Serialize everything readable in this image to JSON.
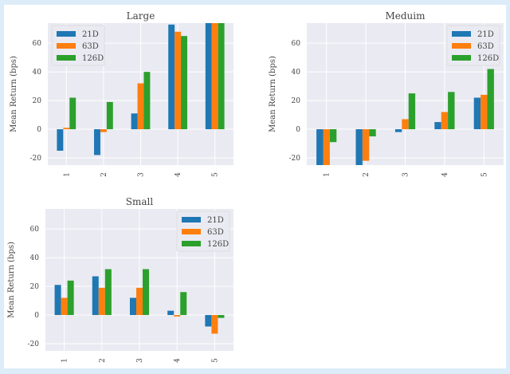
{
  "chart_data": [
    {
      "type": "bar",
      "title": "Large",
      "ylabel": "Mean Return (bps)",
      "categories": [
        "1",
        "2",
        "3",
        "4",
        "5"
      ],
      "ylim": [
        -25,
        74
      ],
      "yticks": [
        -20,
        0,
        20,
        40,
        60
      ],
      "legend": "top-left",
      "grid": true,
      "series": [
        {
          "name": "21D",
          "color": "#1f77b4",
          "values": [
            -15,
            -18,
            11,
            73,
            74
          ]
        },
        {
          "name": "63D",
          "color": "#ff7f0e",
          "values": [
            1,
            -2,
            32,
            68,
            74
          ]
        },
        {
          "name": "126D",
          "color": "#2ca02c",
          "values": [
            22,
            19,
            40,
            65,
            74
          ]
        }
      ]
    },
    {
      "type": "bar",
      "title": "Meduim",
      "ylabel": "Mean Return (bps)",
      "categories": [
        "1",
        "2",
        "3",
        "4",
        "5"
      ],
      "ylim": [
        -25,
        74
      ],
      "yticks": [
        -20,
        0,
        20,
        40,
        60
      ],
      "legend": "top-right",
      "grid": true,
      "series": [
        {
          "name": "21D",
          "color": "#1f77b4",
          "values": [
            -25,
            -25,
            -2,
            5,
            22
          ]
        },
        {
          "name": "63D",
          "color": "#ff7f0e",
          "values": [
            -25,
            -22,
            7,
            12,
            24
          ]
        },
        {
          "name": "126D",
          "color": "#2ca02c",
          "values": [
            -9,
            -5,
            25,
            26,
            42
          ]
        }
      ]
    },
    {
      "type": "bar",
      "title": "Small",
      "ylabel": "Mean Return (bps)",
      "categories": [
        "1",
        "2",
        "3",
        "4",
        "5"
      ],
      "ylim": [
        -25,
        74
      ],
      "yticks": [
        -20,
        0,
        20,
        40,
        60
      ],
      "legend": "top-right",
      "grid": true,
      "series": [
        {
          "name": "21D",
          "color": "#1f77b4",
          "values": [
            21,
            27,
            12,
            3,
            -8
          ]
        },
        {
          "name": "63D",
          "color": "#ff7f0e",
          "values": [
            12,
            19,
            19,
            -1,
            -13
          ]
        },
        {
          "name": "126D",
          "color": "#2ca02c",
          "values": [
            24,
            32,
            32,
            16,
            -2
          ]
        }
      ]
    }
  ]
}
